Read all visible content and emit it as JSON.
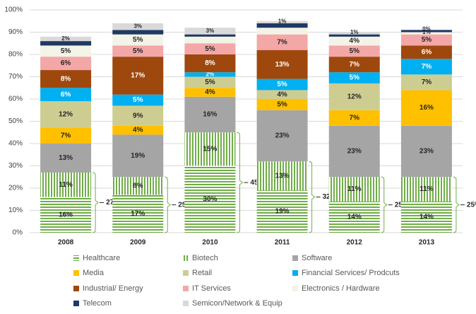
{
  "chart_data": {
    "type": "stacked_bar",
    "categories": [
      "2008",
      "2009",
      "2010",
      "2011",
      "2012",
      "2013"
    ],
    "ylim": [
      0,
      100
    ],
    "yticks": [
      {
        "value": 0,
        "label": "0%"
      },
      {
        "value": 10,
        "label": "10%"
      },
      {
        "value": 20,
        "label": "20%"
      },
      {
        "value": 30,
        "label": "30%"
      },
      {
        "value": 40,
        "label": "40%"
      },
      {
        "value": 50,
        "label": "50%"
      },
      {
        "value": 60,
        "label": "60%"
      },
      {
        "value": 70,
        "label": "70%"
      },
      {
        "value": 80,
        "label": "80%"
      },
      {
        "value": 90,
        "label": "90%"
      },
      {
        "value": 100,
        "label": "100%"
      }
    ],
    "grid": true,
    "series": [
      {
        "name": "Healthcare",
        "color": "#70ad47",
        "hatch": "horizontal",
        "values": [
          16,
          17,
          30,
          19,
          14,
          14
        ],
        "value_labels": [
          "16%",
          "17%",
          "30%",
          "19%",
          "14%",
          "14%"
        ]
      },
      {
        "name": "Biotech",
        "color": "#70ad47",
        "hatch": "vertical",
        "values": [
          11,
          8,
          15,
          13,
          11,
          11
        ],
        "value_labels": [
          "11%",
          "8%",
          "15%",
          "13%",
          "11%",
          "11%"
        ]
      },
      {
        "name": "Software",
        "color": "#a5a5a5",
        "values": [
          13,
          19,
          16,
          23,
          23,
          23
        ],
        "value_labels": [
          "13%",
          "19%",
          "16%",
          "23%",
          "23%",
          "23%"
        ]
      },
      {
        "name": "Media",
        "color": "#ffc000",
        "values": [
          7,
          4,
          4,
          5,
          7,
          16
        ],
        "value_labels": [
          "7%",
          "4%",
          "4%",
          "5%",
          "7%",
          "16%"
        ]
      },
      {
        "name": "Retail",
        "color": "#cdcd92",
        "values": [
          12,
          9,
          5,
          4,
          12,
          7
        ],
        "value_labels": [
          "12%",
          "9%",
          "5%",
          "4%",
          "12%",
          "7%"
        ]
      },
      {
        "name": "Financial Services/ Prodcuts",
        "color": "#00b0f0",
        "values": [
          6,
          5,
          2,
          5,
          5,
          7
        ],
        "value_labels": [
          "6%",
          "5%",
          "2%",
          "5%",
          "5%",
          "7%"
        ]
      },
      {
        "name": "Industrial/ Energy",
        "color": "#9e480e",
        "values": [
          8,
          17,
          8,
          13,
          7,
          6
        ],
        "value_labels": [
          "8%",
          "17%",
          "8%",
          "13%",
          "7%",
          "6%"
        ]
      },
      {
        "name": "IT Services",
        "color": "#f4a7a7",
        "values": [
          6,
          5,
          5,
          7,
          5,
          5
        ],
        "value_labels": [
          "6%",
          "5%",
          "5%",
          "7%",
          "5%",
          "5%"
        ]
      },
      {
        "name": "Electronics / Hardware",
        "color": "#f3f3e7",
        "values": [
          5,
          5,
          3,
          3,
          4,
          1
        ],
        "value_labels": [
          "5%",
          "5%",
          null,
          null,
          "4%",
          "1%"
        ]
      },
      {
        "name": "Telecom",
        "color": "#203864",
        "values": [
          2,
          2,
          1,
          2,
          1,
          1
        ],
        "value_labels": [
          null,
          null,
          null,
          null,
          null,
          null
        ]
      },
      {
        "name": "Semicon/Network & Equip",
        "color": "#d9d9d9",
        "values": [
          2,
          3,
          3,
          1,
          1,
          0
        ],
        "value_labels": [
          "2%",
          "3%",
          "3%",
          "1%",
          "1%",
          "0%"
        ]
      }
    ],
    "brackets": {
      "values": [
        27,
        25,
        45,
        32,
        25,
        25
      ],
      "value_labels": [
        "27%",
        "25%",
        "45%",
        "32%",
        "25%",
        "25%"
      ]
    }
  }
}
